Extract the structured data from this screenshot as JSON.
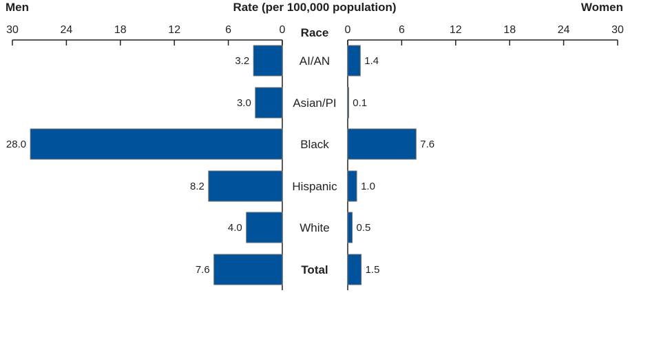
{
  "chart_data": {
    "type": "bar",
    "orientation": "horizontal-butterfly",
    "title": "Rate (per 100,000 population)",
    "category_label": "Race",
    "categories": [
      "AI/AN",
      "Asian/PI",
      "Black",
      "Hispanic",
      "White",
      "Total"
    ],
    "series": [
      {
        "name": "Men",
        "values": [
          3.2,
          3.0,
          28.0,
          8.2,
          4.0,
          7.6
        ]
      },
      {
        "name": "Women",
        "values": [
          1.4,
          0.1,
          7.6,
          1.0,
          0.5,
          1.5
        ]
      }
    ],
    "value_labels": {
      "Men": [
        "3.2",
        "3.0",
        "28.0",
        "8.2",
        "4.0",
        "7.6"
      ],
      "Women": [
        "1.4",
        "0.1",
        "7.6",
        "1.0",
        "0.5",
        "1.5"
      ]
    },
    "xlim": [
      0,
      30
    ],
    "ticks": [
      "0",
      "6",
      "12",
      "18",
      "24",
      "30"
    ],
    "grid": false,
    "bar_color": "#00529b",
    "bar_edge_color": "#6d6e71"
  }
}
